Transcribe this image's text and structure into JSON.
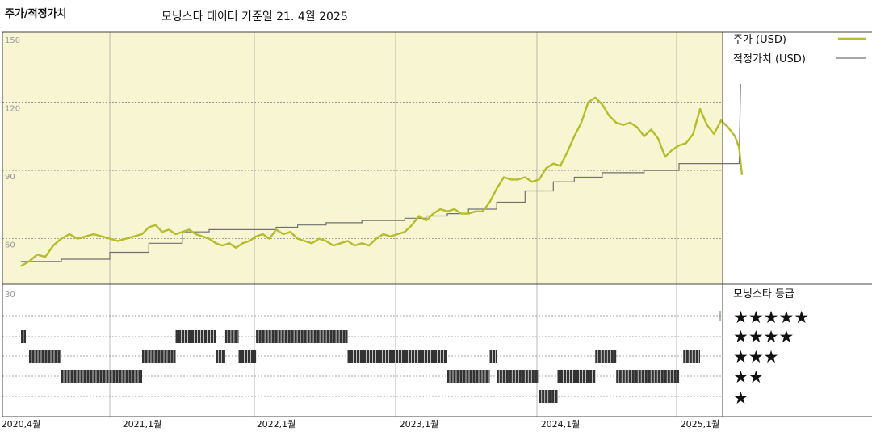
{
  "title": "주가/적정가치",
  "subtitle": "모닝스타 데이터 기준일 21. 4월 2025",
  "rating_heading": "모닝스타 등급",
  "colors": {
    "price": "#b5bd2a",
    "fair_value": "#707070",
    "panel_bg": "#f8f5d2",
    "ratings": "#333333"
  },
  "chart_data": {
    "type": "line",
    "ylim": [
      30,
      150
    ],
    "yticks": [
      150,
      120,
      90,
      60,
      30
    ],
    "xticks": [
      "2020,4월",
      "2021,1월",
      "2022,1월",
      "2023,1월",
      "2024,1월",
      "2025,1월"
    ],
    "series": [
      {
        "name": "주가 (USD)",
        "points": [
          [
            2020.25,
            48
          ],
          [
            2020.3,
            50
          ],
          [
            2020.35,
            53
          ],
          [
            2020.4,
            52
          ],
          [
            2020.45,
            57
          ],
          [
            2020.5,
            60
          ],
          [
            2020.55,
            62
          ],
          [
            2020.6,
            60
          ],
          [
            2020.65,
            61
          ],
          [
            2020.7,
            62
          ],
          [
            2020.75,
            61
          ],
          [
            2020.8,
            60
          ],
          [
            2020.85,
            59
          ],
          [
            2020.9,
            60
          ],
          [
            2020.95,
            61
          ],
          [
            2021.0,
            62
          ],
          [
            2021.05,
            65
          ],
          [
            2021.1,
            66
          ],
          [
            2021.15,
            63
          ],
          [
            2021.2,
            64
          ],
          [
            2021.25,
            62
          ],
          [
            2021.3,
            63
          ],
          [
            2021.35,
            64
          ],
          [
            2021.4,
            62
          ],
          [
            2021.45,
            61
          ],
          [
            2021.5,
            60
          ],
          [
            2021.55,
            58
          ],
          [
            2021.6,
            57
          ],
          [
            2021.65,
            58
          ],
          [
            2021.7,
            56
          ],
          [
            2021.75,
            58
          ],
          [
            2021.8,
            59
          ],
          [
            2021.85,
            61
          ],
          [
            2021.9,
            62
          ],
          [
            2021.95,
            60
          ],
          [
            2022.0,
            64
          ],
          [
            2022.05,
            62
          ],
          [
            2022.1,
            63
          ],
          [
            2022.15,
            60
          ],
          [
            2022.2,
            59
          ],
          [
            2022.25,
            58
          ],
          [
            2022.3,
            60
          ],
          [
            2022.35,
            59
          ],
          [
            2022.4,
            57
          ],
          [
            2022.45,
            58
          ],
          [
            2022.5,
            59
          ],
          [
            2022.55,
            57
          ],
          [
            2022.6,
            58
          ],
          [
            2022.65,
            57
          ],
          [
            2022.7,
            60
          ],
          [
            2022.75,
            62
          ],
          [
            2022.8,
            61
          ],
          [
            2022.85,
            62
          ],
          [
            2022.9,
            63
          ],
          [
            2022.95,
            66
          ],
          [
            2023.0,
            70
          ],
          [
            2023.05,
            68
          ],
          [
            2023.1,
            71
          ],
          [
            2023.15,
            73
          ],
          [
            2023.2,
            72
          ],
          [
            2023.25,
            73
          ],
          [
            2023.3,
            71
          ],
          [
            2023.35,
            71
          ],
          [
            2023.4,
            72
          ],
          [
            2023.45,
            72
          ],
          [
            2023.5,
            76
          ],
          [
            2023.55,
            82
          ],
          [
            2023.6,
            87
          ],
          [
            2023.65,
            86
          ],
          [
            2023.7,
            86
          ],
          [
            2023.75,
            87
          ],
          [
            2023.8,
            85
          ],
          [
            2023.85,
            86
          ],
          [
            2023.9,
            91
          ],
          [
            2023.95,
            93
          ],
          [
            2024.0,
            92
          ],
          [
            2024.05,
            98
          ],
          [
            2024.1,
            105
          ],
          [
            2024.15,
            111
          ],
          [
            2024.2,
            120
          ],
          [
            2024.25,
            122
          ],
          [
            2024.3,
            119
          ],
          [
            2024.35,
            114
          ],
          [
            2024.4,
            111
          ],
          [
            2024.45,
            110
          ],
          [
            2024.5,
            111
          ],
          [
            2024.55,
            109
          ],
          [
            2024.6,
            105
          ],
          [
            2024.65,
            108
          ],
          [
            2024.7,
            104
          ],
          [
            2024.75,
            96
          ],
          [
            2024.8,
            99
          ],
          [
            2024.85,
            101
          ],
          [
            2024.9,
            102
          ],
          [
            2024.95,
            106
          ],
          [
            2025.0,
            117
          ],
          [
            2025.05,
            110
          ],
          [
            2025.1,
            106
          ],
          [
            2025.15,
            112
          ],
          [
            2025.2,
            109
          ],
          [
            2025.25,
            105
          ],
          [
            2025.28,
            100
          ],
          [
            2025.3,
            88
          ]
        ]
      },
      {
        "name": "적정가치 (USD)",
        "points": [
          [
            2020.25,
            50
          ],
          [
            2020.5,
            50
          ],
          [
            2020.5,
            51
          ],
          [
            2020.8,
            51
          ],
          [
            2020.8,
            54
          ],
          [
            2021.05,
            54
          ],
          [
            2021.05,
            58
          ],
          [
            2021.3,
            58
          ],
          [
            2021.3,
            63
          ],
          [
            2021.5,
            63
          ],
          [
            2021.5,
            64
          ],
          [
            2022.0,
            64
          ],
          [
            2022.0,
            65
          ],
          [
            2022.15,
            65
          ],
          [
            2022.15,
            66
          ],
          [
            2022.35,
            66
          ],
          [
            2022.35,
            67
          ],
          [
            2022.6,
            67
          ],
          [
            2022.6,
            68
          ],
          [
            2022.9,
            68
          ],
          [
            2022.9,
            69
          ],
          [
            2023.05,
            69
          ],
          [
            2023.05,
            70
          ],
          [
            2023.2,
            70
          ],
          [
            2023.2,
            71
          ],
          [
            2023.35,
            71
          ],
          [
            2023.35,
            73
          ],
          [
            2023.55,
            73
          ],
          [
            2023.55,
            76
          ],
          [
            2023.75,
            76
          ],
          [
            2023.75,
            81
          ],
          [
            2023.95,
            81
          ],
          [
            2023.95,
            85
          ],
          [
            2024.1,
            85
          ],
          [
            2024.1,
            87
          ],
          [
            2024.3,
            87
          ],
          [
            2024.3,
            89
          ],
          [
            2024.6,
            89
          ],
          [
            2024.6,
            90
          ],
          [
            2024.85,
            90
          ],
          [
            2024.85,
            93
          ],
          [
            2025.28,
            93
          ],
          [
            2025.29,
            128
          ]
        ]
      }
    ],
    "ratings": [
      [
        2020.25,
        2020.28,
        4
      ],
      [
        2020.3,
        2020.5,
        3
      ],
      [
        2020.5,
        2021.0,
        2
      ],
      [
        2021.0,
        2021.25,
        3
      ],
      [
        2021.25,
        2021.55,
        4
      ],
      [
        2021.55,
        2021.62,
        3
      ],
      [
        2021.62,
        2021.72,
        4
      ],
      [
        2021.72,
        2021.85,
        3
      ],
      [
        2021.85,
        2022.5,
        4
      ],
      [
        2022.5,
        2023.2,
        3
      ],
      [
        2023.2,
        2023.5,
        2
      ],
      [
        2023.5,
        2023.55,
        3
      ],
      [
        2023.55,
        2023.85,
        2
      ],
      [
        2023.85,
        2023.98,
        1
      ],
      [
        2023.98,
        2024.25,
        2
      ],
      [
        2024.25,
        2024.4,
        3
      ],
      [
        2024.4,
        2024.85,
        2
      ],
      [
        2024.88,
        2025.0,
        3
      ]
    ]
  }
}
